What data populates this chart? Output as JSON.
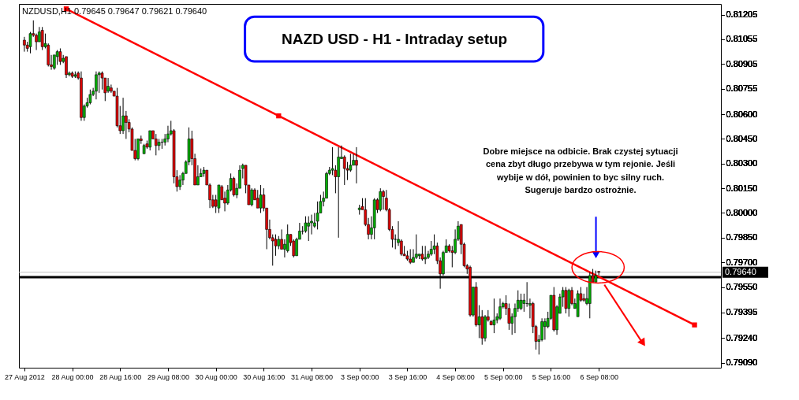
{
  "chart_data": {
    "type": "candlestick",
    "title": "NAZD USD - H1 - Intraday setup",
    "annotations": [
      "NZDUSD,H1  0.79645 0.79647 0.79621 0.79640",
      "Dobre miejsce na odbicie. Brak czystej sytuacji\ncena zbyt długo przebywa w tym rejonie. Jeśli\nwybije w dół, powinien to byc silny ruch.\nSugeruje bardzo ostrożnie."
    ],
    "categories": [
      "27 Aug 2012",
      null,
      null,
      null,
      null,
      null,
      null,
      null,
      null,
      null,
      null,
      null,
      null,
      null,
      null,
      null,
      "28 Aug 00:00",
      null,
      null,
      null,
      null,
      null,
      null,
      null,
      null,
      null,
      null,
      null,
      null,
      null,
      null,
      null,
      "28 Aug 16:00",
      null,
      null,
      null,
      null,
      null,
      null,
      null,
      null,
      null,
      null,
      null,
      null,
      null,
      null,
      null,
      "29 Aug 08:00",
      null,
      null,
      null,
      null,
      null,
      null,
      null,
      null,
      null,
      null,
      null,
      null,
      null,
      null,
      null,
      "30 Aug 00:00",
      null,
      null,
      null,
      null,
      null,
      null,
      null,
      null,
      null,
      null,
      null,
      null,
      null,
      null,
      null,
      "30 Aug 16:00",
      null,
      null,
      null,
      null,
      null,
      null,
      null,
      null,
      null,
      null,
      null,
      null,
      null,
      null,
      null,
      "31 Aug 08:00",
      null,
      null,
      null,
      null,
      null,
      null,
      null,
      null,
      null,
      null,
      null,
      null,
      null,
      null,
      null,
      "3 Sep 00:00",
      null,
      null,
      null,
      null,
      null,
      null,
      null,
      null,
      null,
      null,
      null,
      null,
      null,
      null,
      null,
      "3 Sep 16:00",
      null,
      null,
      null,
      null,
      null,
      null,
      null,
      null,
      null,
      null,
      null,
      null,
      null,
      null,
      null,
      "4 Sep 08:00",
      null,
      null,
      null,
      null,
      null,
      null,
      null,
      null,
      null,
      null,
      null,
      null,
      null,
      null,
      null,
      "5 Sep 00:00",
      null,
      null,
      null,
      null,
      null,
      null,
      null,
      null,
      null,
      null,
      null,
      null,
      null,
      null,
      null,
      "5 Sep 16:00",
      null,
      null,
      null,
      null,
      null,
      null,
      null,
      null,
      null,
      null,
      null,
      null,
      null,
      null,
      null,
      "6 Sep 08:00",
      null,
      null,
      null,
      null,
      null,
      null,
      null,
      null,
      null,
      null,
      null,
      null,
      null,
      null,
      null,
      null,
      null,
      null,
      null,
      null,
      null,
      null,
      null,
      null,
      null,
      null,
      null,
      null,
      null,
      null,
      null,
      null,
      null,
      null,
      null,
      null,
      null,
      null,
      null
    ],
    "ohlc": [
      [
        0.8105,
        0.8107,
        0.8098,
        0.8102
      ],
      [
        0.8102,
        0.8104,
        0.8098,
        0.81
      ],
      [
        0.8101,
        0.811,
        0.8097,
        0.8109
      ],
      [
        0.8109,
        0.8117,
        0.8107,
        0.8108
      ],
      [
        0.8108,
        0.8109,
        0.8099,
        0.8104
      ],
      [
        0.8104,
        0.8113,
        0.8104,
        0.811
      ],
      [
        0.8111,
        0.8113,
        0.8099,
        0.8101
      ],
      [
        0.8101,
        0.8109,
        0.81,
        0.8103
      ],
      [
        0.8102,
        0.8103,
        0.8089,
        0.809
      ],
      [
        0.809,
        0.8096,
        0.8087,
        0.8089
      ],
      [
        0.8088,
        0.8096,
        0.8087,
        0.8096
      ],
      [
        0.8095,
        0.8099,
        0.809,
        0.8098
      ],
      [
        0.8098,
        0.81,
        0.809,
        0.8092
      ],
      [
        0.8092,
        0.8096,
        0.8091,
        0.8094
      ],
      [
        0.8095,
        0.8095,
        0.8082,
        0.8084
      ],
      [
        0.8084,
        0.8086,
        0.8083,
        0.8085
      ],
      [
        0.8085,
        0.8086,
        0.8082,
        0.8083
      ],
      [
        0.8083,
        0.8086,
        0.8082,
        0.8084
      ],
      [
        0.8085,
        0.8086,
        0.8081,
        0.8082
      ],
      [
        0.8082,
        0.8086,
        0.8056,
        0.8058
      ],
      [
        0.8058,
        0.8066,
        0.8056,
        0.8065
      ],
      [
        0.8065,
        0.807,
        0.8064,
        0.8067
      ],
      [
        0.8067,
        0.8075,
        0.8066,
        0.8072
      ],
      [
        0.8072,
        0.8076,
        0.8071,
        0.8074
      ],
      [
        0.8074,
        0.8086,
        0.8069,
        0.8084
      ],
      [
        0.8084,
        0.8086,
        0.8073,
        0.8085
      ],
      [
        0.8085,
        0.8086,
        0.8075,
        0.8082
      ],
      [
        0.8082,
        0.8082,
        0.8068,
        0.8073
      ],
      [
        0.8074,
        0.8082,
        0.8073,
        0.8077
      ],
      [
        0.8076,
        0.8078,
        0.8073,
        0.8074
      ],
      [
        0.8074,
        0.8074,
        0.8071,
        0.8071
      ],
      [
        0.8071,
        0.8076,
        0.8052,
        0.8053
      ],
      [
        0.8053,
        0.8065,
        0.8048,
        0.805
      ],
      [
        0.805,
        0.807,
        0.8048,
        0.8059
      ],
      [
        0.8059,
        0.8062,
        0.8045,
        0.8055
      ],
      [
        0.8055,
        0.8057,
        0.8049,
        0.8051
      ],
      [
        0.8051,
        0.8052,
        0.8038,
        0.8038
      ],
      [
        0.8038,
        0.8045,
        0.8032,
        0.8033
      ],
      [
        0.8033,
        0.8045,
        0.8032,
        0.8045
      ],
      [
        0.8045,
        0.8047,
        0.8042,
        0.8044
      ],
      [
        0.8036,
        0.8042,
        0.8036,
        0.8041
      ],
      [
        0.8042,
        0.8044,
        0.8039,
        0.804
      ],
      [
        0.804,
        0.805,
        0.8038,
        0.805
      ],
      [
        0.805,
        0.805,
        0.8045,
        0.8045
      ],
      [
        0.8045,
        0.8048,
        0.8035,
        0.8041
      ],
      [
        0.8041,
        0.8045,
        0.8038,
        0.8043
      ],
      [
        0.8043,
        0.8045,
        0.8039,
        0.8043
      ],
      [
        0.8043,
        0.8048,
        0.8041,
        0.8045
      ],
      [
        0.8045,
        0.8053,
        0.8043,
        0.8048
      ],
      [
        0.8048,
        0.8056,
        0.8047,
        0.805
      ],
      [
        0.805,
        0.8051,
        0.8018,
        0.8022
      ],
      [
        0.8022,
        0.8026,
        0.8013,
        0.8016
      ],
      [
        0.8016,
        0.8023,
        0.8014,
        0.802
      ],
      [
        0.802,
        0.8025,
        0.8017,
        0.8024
      ],
      [
        0.8024,
        0.8032,
        0.8024,
        0.8031
      ],
      [
        0.8031,
        0.8052,
        0.8029,
        0.8045
      ],
      [
        0.8045,
        0.805,
        0.8029,
        0.8033
      ],
      [
        0.8033,
        0.8036,
        0.8017,
        0.8017
      ],
      [
        0.8017,
        0.8029,
        0.8017,
        0.8022
      ],
      [
        0.8022,
        0.8027,
        0.8022,
        0.8024
      ],
      [
        0.8024,
        0.8028,
        0.8022,
        0.8026
      ],
      [
        0.8026,
        0.8026,
        0.8017,
        0.8017
      ],
      [
        0.8017,
        0.8018,
        0.8003,
        0.8008
      ],
      [
        0.8008,
        0.8011,
        0.8003,
        0.8004
      ],
      [
        0.8008,
        0.8011,
        0.8,
        0.8004
      ],
      [
        0.8003,
        0.8017,
        0.8,
        0.8017
      ],
      [
        0.8016,
        0.8017,
        0.8008,
        0.8008
      ],
      [
        0.8009,
        0.8013,
        0.8001,
        0.8006
      ],
      [
        0.8006,
        0.8017,
        0.8005,
        0.8014
      ],
      [
        0.8014,
        0.8024,
        0.8013,
        0.8021
      ],
      [
        0.8021,
        0.8022,
        0.801,
        0.8011
      ],
      [
        0.8011,
        0.8018,
        0.8009,
        0.8015
      ],
      [
        0.8015,
        0.8029,
        0.8015,
        0.8026
      ],
      [
        0.8027,
        0.803,
        0.8021,
        0.8029
      ],
      [
        0.8029,
        0.8029,
        0.8012,
        0.8017
      ],
      [
        0.8017,
        0.8017,
        0.8005,
        0.8005
      ],
      [
        0.8005,
        0.8015,
        0.8004,
        0.8014
      ],
      [
        0.8014,
        0.8015,
        0.8008,
        0.8008
      ],
      [
        0.8009,
        0.8014,
        0.8003,
        0.8003
      ],
      [
        0.8003,
        0.8017,
        0.8,
        0.8011
      ],
      [
        0.8011,
        0.8015,
        0.8001,
        0.8003
      ],
      [
        0.8003,
        0.8003,
        0.7978,
        0.799
      ],
      [
        0.799,
        0.7996,
        0.7984,
        0.7985
      ],
      [
        0.7985,
        0.7987,
        0.7968,
        0.7983
      ],
      [
        0.7984,
        0.7987,
        0.7974,
        0.798
      ],
      [
        0.798,
        0.7986,
        0.7978,
        0.7984
      ],
      [
        0.7984,
        0.799,
        0.7978,
        0.7978
      ],
      [
        0.7978,
        0.7984,
        0.7973,
        0.7981
      ],
      [
        0.7977,
        0.7993,
        0.7976,
        0.7987
      ],
      [
        0.7987,
        0.7987,
        0.798,
        0.7982
      ],
      [
        0.7983,
        0.7984,
        0.7973,
        0.7974
      ],
      [
        0.7974,
        0.7985,
        0.7974,
        0.7984
      ],
      [
        0.7984,
        0.7994,
        0.7984,
        0.7989
      ],
      [
        0.7989,
        0.7992,
        0.7987,
        0.7989
      ],
      [
        0.7989,
        0.7998,
        0.7988,
        0.7994
      ],
      [
        0.7992,
        0.7998,
        0.7983,
        0.7994
      ],
      [
        0.7994,
        0.7999,
        0.7987,
        0.7995
      ],
      [
        0.7992,
        0.8,
        0.7991,
        0.7994
      ],
      [
        0.7995,
        0.8007,
        0.799,
        0.8
      ],
      [
        0.8,
        0.8011,
        0.8,
        0.8007
      ],
      [
        0.8007,
        0.8013,
        0.8004,
        0.8009
      ],
      [
        0.8009,
        0.8025,
        0.8009,
        0.8024
      ],
      [
        0.8024,
        0.8028,
        0.8023,
        0.8026
      ],
      [
        0.8026,
        0.804,
        0.8023,
        0.8027
      ],
      [
        0.8026,
        0.8029,
        0.8012,
        0.8022
      ],
      [
        0.8022,
        0.804,
        0.7985,
        0.8034
      ],
      [
        0.8033,
        0.8041,
        0.8033,
        0.8034
      ],
      [
        0.8034,
        0.8035,
        0.8017,
        0.8027
      ],
      [
        0.8027,
        0.8031,
        0.802,
        0.8026
      ],
      [
        0.8026,
        0.8036,
        0.8025,
        0.8029
      ],
      [
        0.8029,
        0.8036,
        0.8029,
        0.8032
      ],
      [
        0.8032,
        0.804,
        0.8018,
        0.8029
      ],
      [
        0.8002,
        0.8005,
        0.7999,
        0.8003
      ],
      [
        0.8004,
        0.8009,
        0.8002,
        0.8002
      ],
      [
        0.8002,
        0.8009,
        0.7992,
        0.7993
      ],
      [
        0.7993,
        0.7997,
        0.7984,
        0.7987
      ],
      [
        0.7987,
        0.7998,
        0.7984,
        0.7991
      ],
      [
        0.7991,
        0.8009,
        0.7984,
        0.8008
      ],
      [
        0.8008,
        0.8009,
        0.8,
        0.8002
      ],
      [
        0.8002,
        0.8015,
        0.8001,
        0.8013
      ],
      [
        0.8013,
        0.8014,
        0.8002,
        0.801
      ],
      [
        0.8009,
        0.8014,
        0.8001,
        0.8002
      ],
      [
        0.8002,
        0.8003,
        0.7989,
        0.799
      ],
      [
        0.799,
        0.7992,
        0.7979,
        0.7984
      ],
      [
        0.7984,
        0.7987,
        0.7978,
        0.7984
      ],
      [
        0.7982,
        0.7995,
        0.798,
        0.7984
      ],
      [
        0.7983,
        0.7984,
        0.7974,
        0.7975
      ],
      [
        0.7975,
        0.798,
        0.7974,
        0.7974
      ],
      [
        0.7974,
        0.7977,
        0.7971,
        0.7972
      ],
      [
        0.7972,
        0.7978,
        0.7969,
        0.797
      ],
      [
        0.797,
        0.7978,
        0.797,
        0.7973
      ],
      [
        0.7973,
        0.7987,
        0.7972,
        0.7975
      ],
      [
        0.7974,
        0.7975,
        0.7972,
        0.7975
      ],
      [
        0.7975,
        0.798,
        0.7971,
        0.7972
      ],
      [
        0.7972,
        0.798,
        0.7969,
        0.7973
      ],
      [
        0.7973,
        0.7977,
        0.7972,
        0.7975
      ],
      [
        0.7975,
        0.7983,
        0.7974,
        0.7978
      ],
      [
        0.7978,
        0.7987,
        0.7975,
        0.798
      ],
      [
        0.798,
        0.7982,
        0.7969,
        0.7971
      ],
      [
        0.7971,
        0.7973,
        0.7954,
        0.7963
      ],
      [
        0.7963,
        0.7977,
        0.7962,
        0.7976
      ],
      [
        0.7976,
        0.7984,
        0.7976,
        0.798
      ],
      [
        0.798,
        0.7981,
        0.7976,
        0.7977
      ],
      [
        0.7977,
        0.798,
        0.7967,
        0.7976
      ],
      [
        0.7976,
        0.799,
        0.7975,
        0.7984
      ],
      [
        0.7984,
        0.7995,
        0.7983,
        0.7992
      ],
      [
        0.7993,
        0.7993,
        0.7975,
        0.7981
      ],
      [
        0.7981,
        0.7982,
        0.7967,
        0.7968
      ],
      [
        0.7968,
        0.7969,
        0.7963,
        0.7966
      ],
      [
        0.7967,
        0.7968,
        0.7937,
        0.7938
      ],
      [
        0.7938,
        0.7955,
        0.7937,
        0.7955
      ],
      [
        0.7955,
        0.7958,
        0.7931,
        0.7932
      ],
      [
        0.7932,
        0.7944,
        0.7924,
        0.7937
      ],
      [
        0.7937,
        0.7941,
        0.792,
        0.7924
      ],
      [
        0.7924,
        0.7938,
        0.7922,
        0.7937
      ],
      [
        0.7937,
        0.7941,
        0.7934,
        0.7935
      ],
      [
        0.7934,
        0.7935,
        0.7932,
        0.7932
      ],
      [
        0.7932,
        0.7948,
        0.7927,
        0.7935
      ],
      [
        0.7935,
        0.7939,
        0.7933,
        0.7937
      ],
      [
        0.7936,
        0.7948,
        0.7935,
        0.7943
      ],
      [
        0.7943,
        0.7946,
        0.7942,
        0.7945
      ],
      [
        0.7945,
        0.795,
        0.7938,
        0.7942
      ],
      [
        0.7942,
        0.7945,
        0.7929,
        0.7933
      ],
      [
        0.7933,
        0.7939,
        0.7926,
        0.7937
      ],
      [
        0.7937,
        0.7945,
        0.7927,
        0.7942
      ],
      [
        0.7942,
        0.7953,
        0.794,
        0.7947
      ],
      [
        0.7942,
        0.7951,
        0.7941,
        0.7947
      ],
      [
        0.7945,
        0.7951,
        0.794,
        0.7947
      ],
      [
        0.7945,
        0.7958,
        0.7943,
        0.7945
      ],
      [
        0.7944,
        0.7948,
        0.7936,
        0.7945
      ],
      [
        0.7945,
        0.7946,
        0.7927,
        0.7931
      ],
      [
        0.7931,
        0.7932,
        0.7917,
        0.7922
      ],
      [
        0.7922,
        0.7926,
        0.7914,
        0.7923
      ],
      [
        0.7923,
        0.7936,
        0.7922,
        0.7934
      ],
      [
        0.7931,
        0.7936,
        0.7923,
        0.7934
      ],
      [
        0.7931,
        0.794,
        0.793,
        0.7936
      ],
      [
        0.7936,
        0.795,
        0.7935,
        0.795
      ],
      [
        0.795,
        0.7955,
        0.7928,
        0.7929
      ],
      [
        0.7929,
        0.7944,
        0.7926,
        0.7943
      ],
      [
        0.7939,
        0.7951,
        0.7939,
        0.7949
      ],
      [
        0.7949,
        0.7955,
        0.7943,
        0.7953
      ],
      [
        0.7953,
        0.7955,
        0.7939,
        0.7942
      ],
      [
        0.7942,
        0.7954,
        0.7937,
        0.7953
      ],
      [
        0.7953,
        0.7955,
        0.7944,
        0.7945
      ],
      [
        0.7942,
        0.7948,
        0.7942,
        0.7945
      ],
      [
        0.7937,
        0.7953,
        0.7937,
        0.7951
      ],
      [
        0.7951,
        0.7955,
        0.7946,
        0.7947
      ],
      [
        0.7948,
        0.7951,
        0.7946,
        0.7947
      ],
      [
        0.7945,
        0.7955,
        0.7944,
        0.7948
      ],
      [
        0.7945,
        0.7964,
        0.7936,
        0.7962
      ],
      [
        0.7962,
        0.7966,
        0.7958,
        0.7958
      ],
      [
        0.7958,
        0.7965,
        0.7958,
        0.7962
      ],
      [
        0.79645,
        0.79647,
        0.79621,
        0.7964
      ],
      null,
      null,
      null,
      null,
      null,
      null,
      null,
      null,
      null,
      null,
      null,
      null,
      null,
      null,
      null,
      null,
      null,
      null,
      null,
      null,
      null,
      null,
      null,
      null,
      null,
      null,
      null,
      null,
      null,
      null,
      null,
      null,
      null,
      null,
      null,
      null,
      null,
      null,
      null
    ],
    "series": [
      {
        "type": "line",
        "color": "#ff0000",
        "marker": "square",
        "values": [
          null,
          null,
          null,
          null,
          null,
          null,
          null,
          null,
          null,
          null,
          null,
          null,
          null,
          null,
          0.8124,
          null,
          null,
          null,
          null,
          null,
          null,
          null,
          null,
          null,
          null,
          null,
          null,
          null,
          null,
          null,
          null,
          null,
          null,
          null,
          null,
          null,
          null,
          null,
          null,
          null,
          null,
          null,
          null,
          null,
          null,
          null,
          null,
          null,
          null,
          null,
          null,
          null,
          null,
          null,
          null,
          null,
          null,
          null,
          null,
          null,
          null,
          null,
          null,
          null,
          null,
          null,
          null,
          null,
          null,
          null,
          null,
          null,
          null,
          null,
          null,
          null,
          null,
          null,
          null,
          null,
          null,
          null,
          null,
          null,
          null,
          0.8059,
          null,
          null,
          null,
          null,
          null,
          null,
          null,
          null,
          null,
          null,
          null,
          null,
          null,
          null,
          null,
          null,
          null,
          null,
          null,
          null,
          null,
          null,
          null,
          null,
          null,
          null,
          null,
          null,
          null,
          null,
          null,
          null,
          null,
          null,
          null,
          null,
          null,
          null,
          null,
          null,
          null,
          null,
          null,
          null,
          null,
          null,
          null,
          null,
          null,
          null,
          null,
          null,
          null,
          null,
          null,
          null,
          null,
          null,
          null,
          null,
          null,
          null,
          null,
          null,
          null,
          null,
          null,
          null,
          null,
          null,
          null,
          null,
          null,
          null,
          null,
          null,
          null,
          null,
          null,
          null,
          null,
          null,
          null,
          null,
          null,
          null,
          null,
          null,
          null,
          null,
          null,
          null,
          null,
          null,
          null,
          null,
          null,
          null,
          null,
          null,
          null,
          null,
          null,
          null,
          null,
          null,
          null,
          null,
          null,
          null,
          null,
          null,
          null,
          null,
          null,
          null,
          null,
          null,
          null,
          null,
          null,
          null,
          null,
          null,
          null,
          null,
          null,
          null,
          null,
          null,
          null,
          null,
          null,
          null,
          null,
          null,
          null,
          null,
          0.7932,
          null,
          null,
          null,
          null,
          null,
          null,
          null
        ]
      }
    ],
    "ref_lines": [
      {
        "axis": "y",
        "value": 0.7961,
        "color": "#000000"
      },
      {
        "axis": "y",
        "value": 0.7964,
        "label": "0.79640",
        "color": "#c0c0c0"
      }
    ],
    "ylim": [
      0.7906,
      0.8127
    ],
    "yticks": [
      {
        "value": 0.7909,
        "label": "0.79090"
      },
      {
        "value": 0.7924,
        "label": "0.79240"
      },
      0.79395,
      {
        "value": 0.7955,
        "label": "0.79550"
      },
      {
        "value": 0.797,
        "label": "0.79700"
      },
      {
        "value": 0.7985,
        "label": "0.79850"
      },
      {
        "value": 0.8,
        "label": "0.80000"
      },
      {
        "value": 0.8015,
        "label": "0.80150"
      },
      {
        "value": 0.803,
        "label": "0.80300"
      },
      {
        "value": 0.8045,
        "label": "0.80450"
      },
      {
        "value": 0.806,
        "label": "0.80600"
      },
      0.80755,
      0.80905,
      0.81055,
      0.81205
    ],
    "grid": false
  }
}
